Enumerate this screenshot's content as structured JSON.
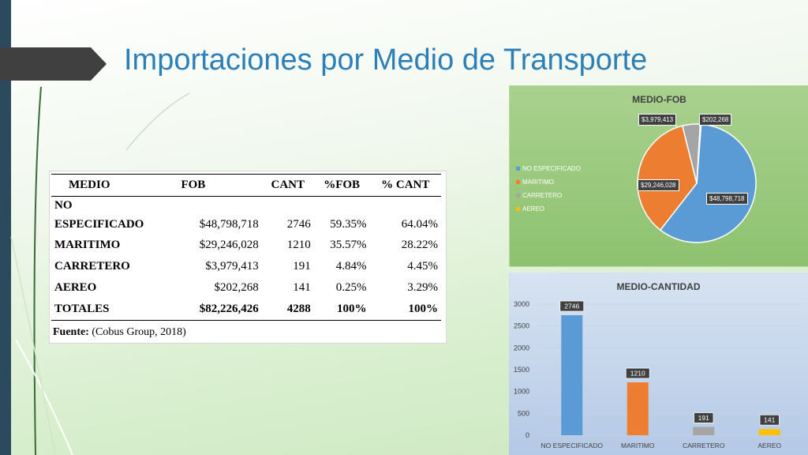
{
  "slide": {
    "title": "Importaciones por Medio de Transporte"
  },
  "table": {
    "headers": [
      "MEDIO",
      "FOB",
      "CANT",
      "%FOB",
      "% CANT"
    ],
    "rows": [
      {
        "medio": "NO",
        "fob": "",
        "cant": "",
        "pfob": "",
        "pcant": ""
      },
      {
        "medio": "ESPECIFICADO",
        "fob": "$48,798,718",
        "cant": "2746",
        "pfob": "59.35%",
        "pcant": "64.04%"
      },
      {
        "medio": "MARITIMO",
        "fob": "$29,246,028",
        "cant": "1210",
        "pfob": "35.57%",
        "pcant": "28.22%"
      },
      {
        "medio": "CARRETERO",
        "fob": "$3,979,413",
        "cant": "191",
        "pfob": "4.84%",
        "pcant": "4.45%"
      },
      {
        "medio": "AEREO",
        "fob": "$202,268",
        "cant": "141",
        "pfob": "0.25%",
        "pcant": "3.29%"
      },
      {
        "medio": "TOTALES",
        "fob": "$82,226,426",
        "cant": "4288",
        "pfob": "100%",
        "pcant": "100%"
      }
    ],
    "source_label": "Fuente:",
    "source_text": " (Cobus Group, 2018)"
  },
  "colors": {
    "no_especificado": "#5b9bd5",
    "maritimo": "#ed7d31",
    "carretero": "#a5a5a5",
    "aereo": "#ffc000"
  },
  "chart_data": [
    {
      "type": "pie",
      "title": "MEDIO-FOB",
      "categories": [
        "NO ESPECIFICADO",
        "MARITIMO",
        "CARRETERO",
        "AEREO"
      ],
      "values": [
        48798718,
        29246028,
        3979413,
        202268
      ],
      "data_labels": [
        "$48,798,718",
        "$29,246,028",
        "$3,979,413",
        "$202,268"
      ],
      "legend": "left"
    },
    {
      "type": "bar",
      "title": "MEDIO-CANTIDAD",
      "categories": [
        "NO ESPECIFICADO",
        "MARITIMO",
        "CARRETERO",
        "AEREO"
      ],
      "values": [
        2746,
        1210,
        191,
        141
      ],
      "data_labels": [
        "2746",
        "1210",
        "191",
        "141"
      ],
      "ylim": [
        0,
        3000
      ],
      "yticks": [
        "0",
        "500",
        "1000",
        "1500",
        "2000",
        "2500",
        "3000"
      ],
      "grid": true
    }
  ]
}
